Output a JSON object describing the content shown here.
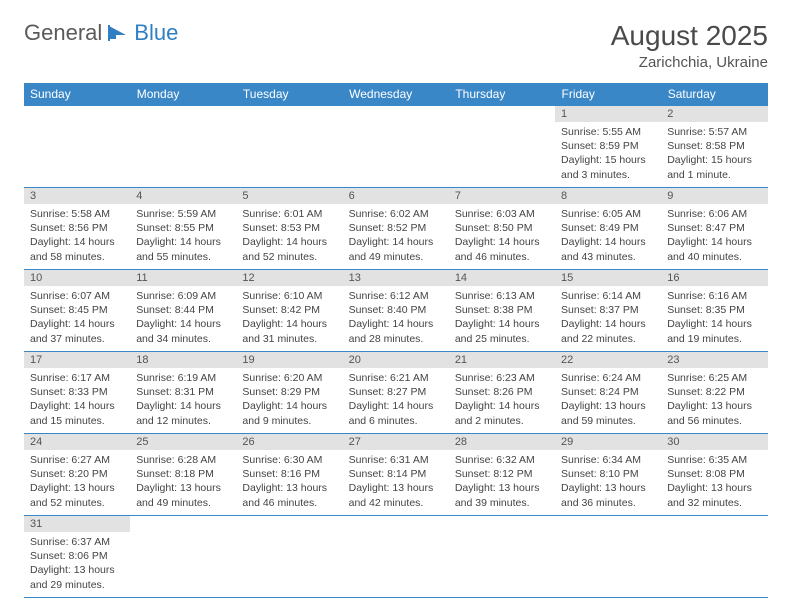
{
  "logo": {
    "text1": "General",
    "text2": "Blue"
  },
  "title": "August 2025",
  "location": "Zarichchia, Ukraine",
  "colors": {
    "header_bg": "#3a87c8",
    "header_text": "#ffffff",
    "daynum_bg": "#e2e2e2",
    "border": "#3a87c8",
    "logo_gray": "#5a5a5a",
    "logo_blue": "#2f7fc2"
  },
  "weekdays": [
    "Sunday",
    "Monday",
    "Tuesday",
    "Wednesday",
    "Thursday",
    "Friday",
    "Saturday"
  ],
  "weeks": [
    [
      null,
      null,
      null,
      null,
      null,
      {
        "n": "1",
        "sr": "Sunrise: 5:55 AM",
        "ss": "Sunset: 8:59 PM",
        "d1": "Daylight: 15 hours",
        "d2": "and 3 minutes."
      },
      {
        "n": "2",
        "sr": "Sunrise: 5:57 AM",
        "ss": "Sunset: 8:58 PM",
        "d1": "Daylight: 15 hours",
        "d2": "and 1 minute."
      }
    ],
    [
      {
        "n": "3",
        "sr": "Sunrise: 5:58 AM",
        "ss": "Sunset: 8:56 PM",
        "d1": "Daylight: 14 hours",
        "d2": "and 58 minutes."
      },
      {
        "n": "4",
        "sr": "Sunrise: 5:59 AM",
        "ss": "Sunset: 8:55 PM",
        "d1": "Daylight: 14 hours",
        "d2": "and 55 minutes."
      },
      {
        "n": "5",
        "sr": "Sunrise: 6:01 AM",
        "ss": "Sunset: 8:53 PM",
        "d1": "Daylight: 14 hours",
        "d2": "and 52 minutes."
      },
      {
        "n": "6",
        "sr": "Sunrise: 6:02 AM",
        "ss": "Sunset: 8:52 PM",
        "d1": "Daylight: 14 hours",
        "d2": "and 49 minutes."
      },
      {
        "n": "7",
        "sr": "Sunrise: 6:03 AM",
        "ss": "Sunset: 8:50 PM",
        "d1": "Daylight: 14 hours",
        "d2": "and 46 minutes."
      },
      {
        "n": "8",
        "sr": "Sunrise: 6:05 AM",
        "ss": "Sunset: 8:49 PM",
        "d1": "Daylight: 14 hours",
        "d2": "and 43 minutes."
      },
      {
        "n": "9",
        "sr": "Sunrise: 6:06 AM",
        "ss": "Sunset: 8:47 PM",
        "d1": "Daylight: 14 hours",
        "d2": "and 40 minutes."
      }
    ],
    [
      {
        "n": "10",
        "sr": "Sunrise: 6:07 AM",
        "ss": "Sunset: 8:45 PM",
        "d1": "Daylight: 14 hours",
        "d2": "and 37 minutes."
      },
      {
        "n": "11",
        "sr": "Sunrise: 6:09 AM",
        "ss": "Sunset: 8:44 PM",
        "d1": "Daylight: 14 hours",
        "d2": "and 34 minutes."
      },
      {
        "n": "12",
        "sr": "Sunrise: 6:10 AM",
        "ss": "Sunset: 8:42 PM",
        "d1": "Daylight: 14 hours",
        "d2": "and 31 minutes."
      },
      {
        "n": "13",
        "sr": "Sunrise: 6:12 AM",
        "ss": "Sunset: 8:40 PM",
        "d1": "Daylight: 14 hours",
        "d2": "and 28 minutes."
      },
      {
        "n": "14",
        "sr": "Sunrise: 6:13 AM",
        "ss": "Sunset: 8:38 PM",
        "d1": "Daylight: 14 hours",
        "d2": "and 25 minutes."
      },
      {
        "n": "15",
        "sr": "Sunrise: 6:14 AM",
        "ss": "Sunset: 8:37 PM",
        "d1": "Daylight: 14 hours",
        "d2": "and 22 minutes."
      },
      {
        "n": "16",
        "sr": "Sunrise: 6:16 AM",
        "ss": "Sunset: 8:35 PM",
        "d1": "Daylight: 14 hours",
        "d2": "and 19 minutes."
      }
    ],
    [
      {
        "n": "17",
        "sr": "Sunrise: 6:17 AM",
        "ss": "Sunset: 8:33 PM",
        "d1": "Daylight: 14 hours",
        "d2": "and 15 minutes."
      },
      {
        "n": "18",
        "sr": "Sunrise: 6:19 AM",
        "ss": "Sunset: 8:31 PM",
        "d1": "Daylight: 14 hours",
        "d2": "and 12 minutes."
      },
      {
        "n": "19",
        "sr": "Sunrise: 6:20 AM",
        "ss": "Sunset: 8:29 PM",
        "d1": "Daylight: 14 hours",
        "d2": "and 9 minutes."
      },
      {
        "n": "20",
        "sr": "Sunrise: 6:21 AM",
        "ss": "Sunset: 8:27 PM",
        "d1": "Daylight: 14 hours",
        "d2": "and 6 minutes."
      },
      {
        "n": "21",
        "sr": "Sunrise: 6:23 AM",
        "ss": "Sunset: 8:26 PM",
        "d1": "Daylight: 14 hours",
        "d2": "and 2 minutes."
      },
      {
        "n": "22",
        "sr": "Sunrise: 6:24 AM",
        "ss": "Sunset: 8:24 PM",
        "d1": "Daylight: 13 hours",
        "d2": "and 59 minutes."
      },
      {
        "n": "23",
        "sr": "Sunrise: 6:25 AM",
        "ss": "Sunset: 8:22 PM",
        "d1": "Daylight: 13 hours",
        "d2": "and 56 minutes."
      }
    ],
    [
      {
        "n": "24",
        "sr": "Sunrise: 6:27 AM",
        "ss": "Sunset: 8:20 PM",
        "d1": "Daylight: 13 hours",
        "d2": "and 52 minutes."
      },
      {
        "n": "25",
        "sr": "Sunrise: 6:28 AM",
        "ss": "Sunset: 8:18 PM",
        "d1": "Daylight: 13 hours",
        "d2": "and 49 minutes."
      },
      {
        "n": "26",
        "sr": "Sunrise: 6:30 AM",
        "ss": "Sunset: 8:16 PM",
        "d1": "Daylight: 13 hours",
        "d2": "and 46 minutes."
      },
      {
        "n": "27",
        "sr": "Sunrise: 6:31 AM",
        "ss": "Sunset: 8:14 PM",
        "d1": "Daylight: 13 hours",
        "d2": "and 42 minutes."
      },
      {
        "n": "28",
        "sr": "Sunrise: 6:32 AM",
        "ss": "Sunset: 8:12 PM",
        "d1": "Daylight: 13 hours",
        "d2": "and 39 minutes."
      },
      {
        "n": "29",
        "sr": "Sunrise: 6:34 AM",
        "ss": "Sunset: 8:10 PM",
        "d1": "Daylight: 13 hours",
        "d2": "and 36 minutes."
      },
      {
        "n": "30",
        "sr": "Sunrise: 6:35 AM",
        "ss": "Sunset: 8:08 PM",
        "d1": "Daylight: 13 hours",
        "d2": "and 32 minutes."
      }
    ],
    [
      {
        "n": "31",
        "sr": "Sunrise: 6:37 AM",
        "ss": "Sunset: 8:06 PM",
        "d1": "Daylight: 13 hours",
        "d2": "and 29 minutes."
      },
      null,
      null,
      null,
      null,
      null,
      null
    ]
  ]
}
